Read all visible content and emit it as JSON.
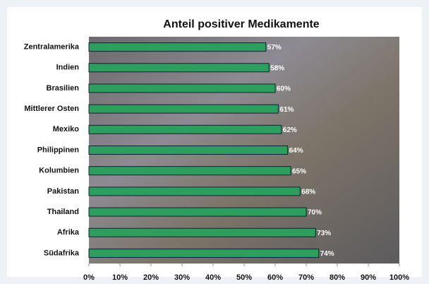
{
  "chart_data": {
    "type": "bar",
    "orientation": "horizontal",
    "title": "Anteil positiver Medikamente",
    "categories": [
      "Zentralamerika",
      "Indien",
      "Brasilien",
      "Mittlerer Osten",
      "Mexiko",
      "Philippinen",
      "Kolumbien",
      "Pakistan",
      "Thailand",
      "Afrika",
      "Südafrika"
    ],
    "values": [
      57,
      58,
      60,
      61,
      62,
      64,
      65,
      68,
      70,
      73,
      74
    ],
    "value_labels": [
      "57%",
      "58%",
      "60%",
      "61%",
      "62%",
      "64%",
      "65%",
      "68%",
      "70%",
      "73%",
      "74%"
    ],
    "color": "#2e9e5e",
    "xlim": [
      0,
      100
    ],
    "xticks": [
      {
        "value": 0,
        "label": "0%"
      },
      {
        "value": 10,
        "label": "10%"
      },
      {
        "value": 20,
        "label": "20%"
      },
      {
        "value": 30,
        "label": "30%"
      },
      {
        "value": 40,
        "label": "40%"
      },
      {
        "value": 50,
        "label": "50%"
      },
      {
        "value": 60,
        "label": "60%"
      },
      {
        "value": 70,
        "label": "70%"
      },
      {
        "value": 80,
        "label": "80%"
      },
      {
        "value": 90,
        "label": "90%"
      },
      {
        "value": 100,
        "label": "100%"
      }
    ]
  }
}
